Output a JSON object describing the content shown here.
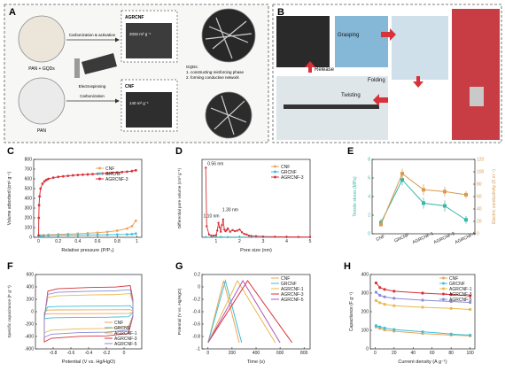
{
  "colors": {
    "cnf": "#f0a35a",
    "grcnf": "#3cc0d8",
    "agrcnf": "#d8313a",
    "agrcnf1": "#e8b84a",
    "agrcnf3": "#b256b8",
    "agrcnf5": "#8a8ad6",
    "tensile": "#37b7a6",
    "conductivity": "#d99a4e",
    "arrow": "#d8313a"
  },
  "panel_a": {
    "letter": "A",
    "precursor_top": "PAN + GQDs",
    "precursor_bottom": "PAN",
    "step_top": "Carbonization & activation",
    "step_middle": "Electrospinning",
    "step_bottom": "Carbonization",
    "sample_top": "AGRCNF",
    "sample_top_area": "2032 m² g⁻¹",
    "sample_bottom": "CNF",
    "sample_bottom_area": "140 m² g⁻¹",
    "notes": [
      "GQDs:",
      "1. constructing reinforcing phase",
      "2. forming conductive network"
    ]
  },
  "panel_b": {
    "letter": "B",
    "labels": [
      "Grasping",
      "Folding",
      "Twisting",
      "Release"
    ]
  },
  "panel_c": {
    "letter": "C",
    "chart_data": {
      "type": "line",
      "xlabel": "Relative pressure (P/P₀)",
      "ylabel": "Volume adsorbed (cm³ g⁻¹)",
      "xlim": [
        -0.05,
        1.05
      ],
      "ylim": [
        0,
        800
      ],
      "xticks": [
        0.0,
        0.2,
        0.4,
        0.6,
        0.8,
        1.0
      ],
      "yticks": [
        0,
        100,
        200,
        300,
        400,
        500,
        600,
        700,
        800
      ],
      "legend": "top-right",
      "series": [
        {
          "name": "CNF",
          "color_key": "cnf",
          "x": [
            0.0,
            0.005,
            0.02,
            0.05,
            0.1,
            0.2,
            0.3,
            0.4,
            0.5,
            0.6,
            0.7,
            0.8,
            0.9,
            0.95,
            0.99
          ],
          "y": [
            5,
            12,
            18,
            22,
            26,
            30,
            34,
            38,
            42,
            48,
            56,
            68,
            90,
            115,
            170
          ]
        },
        {
          "name": "GRCNF",
          "color_key": "grcnf",
          "x": [
            0.0,
            0.005,
            0.02,
            0.05,
            0.1,
            0.2,
            0.3,
            0.4,
            0.5,
            0.6,
            0.7,
            0.8,
            0.9,
            0.95,
            0.99
          ],
          "y": [
            4,
            10,
            14,
            17,
            19,
            21,
            22,
            23,
            24,
            25,
            26,
            28,
            30,
            33,
            38
          ]
        },
        {
          "name": "AGRCNF-3",
          "color_key": "agrcnf",
          "x": [
            0.0,
            0.002,
            0.005,
            0.01,
            0.02,
            0.04,
            0.06,
            0.08,
            0.1,
            0.15,
            0.2,
            0.25,
            0.3,
            0.35,
            0.4,
            0.45,
            0.5,
            0.55,
            0.6,
            0.65,
            0.7,
            0.75,
            0.8,
            0.85,
            0.9,
            0.95,
            0.99
          ],
          "y": [
            20,
            200,
            330,
            420,
            500,
            550,
            575,
            590,
            600,
            612,
            620,
            626,
            631,
            636,
            640,
            643,
            646,
            649,
            652,
            655,
            658,
            662,
            666,
            670,
            674,
            680,
            688
          ]
        }
      ]
    }
  },
  "panel_d": {
    "letter": "D",
    "chart_data": {
      "type": "line",
      "xlabel": "Pore size (nm)",
      "ylabel": "Differential pore volume (cm³ g⁻¹)",
      "xlim": [
        0.4,
        5
      ],
      "ylim": [
        0,
        14
      ],
      "xticks": [
        1,
        2,
        3,
        4,
        5
      ],
      "legend": "top-right",
      "annotations": [
        {
          "text": "0.56 nm",
          "x": 0.56,
          "y": 12.5
        },
        {
          "text": "1.10 nm",
          "x": 1.1,
          "y": 3.1
        },
        {
          "text": "1.30 nm",
          "x": 1.3,
          "y": 4.2
        }
      ],
      "series": [
        {
          "name": "CNF",
          "color_key": "cnf",
          "x": [
            0.56,
            0.8,
            1.0,
            1.2,
            1.5,
            2.0,
            2.5,
            3.0,
            4.0,
            5.0
          ],
          "y": [
            0.05,
            0.05,
            0.06,
            0.06,
            0.05,
            0.05,
            0.04,
            0.04,
            0.03,
            0.03
          ]
        },
        {
          "name": "GRCNF",
          "color_key": "grcnf",
          "x": [
            0.56,
            0.8,
            1.0,
            1.2,
            1.5,
            2.0,
            2.5,
            3.0,
            4.0,
            5.0
          ],
          "y": [
            0.03,
            0.03,
            0.04,
            0.04,
            0.03,
            0.03,
            0.03,
            0.02,
            0.02,
            0.02
          ]
        },
        {
          "name": "AGRCNF-3",
          "color_key": "agrcnf",
          "x": [
            0.56,
            0.6,
            0.7,
            0.8,
            0.9,
            1.0,
            1.05,
            1.1,
            1.15,
            1.2,
            1.25,
            1.3,
            1.35,
            1.4,
            1.45,
            1.5,
            1.6,
            1.7,
            1.8,
            1.9,
            2.0,
            2.1,
            2.2,
            2.3,
            2.4,
            2.5,
            2.7,
            3.0,
            3.5,
            4.0,
            4.5,
            5.0
          ],
          "y": [
            12.5,
            2.0,
            0.5,
            0.3,
            0.3,
            0.4,
            1.2,
            2.6,
            1.8,
            1.0,
            2.2,
            3.2,
            1.4,
            1.1,
            1.3,
            1.6,
            1.0,
            1.3,
            1.1,
            1.2,
            1.4,
            0.9,
            0.6,
            0.5,
            0.3,
            0.25,
            0.2,
            0.15,
            0.1,
            0.08,
            0.06,
            0.05
          ]
        }
      ]
    }
  },
  "panel_e": {
    "letter": "E",
    "chart_data": {
      "type": "line",
      "categories": [
        "CNF",
        "GRCNF",
        "AGRCNF-1",
        "AGRCNF-3",
        "AGRCNF-5"
      ],
      "ylabel": "Tensile stress (MPa)",
      "y2label": "Electric conductivity (S m⁻¹)",
      "ylim": [
        0,
        8
      ],
      "y2lim": [
        0,
        120
      ],
      "yticks": [
        0,
        2,
        4,
        6,
        8
      ],
      "y2ticks": [
        0,
        20,
        40,
        60,
        80,
        100,
        120
      ],
      "series": [
        {
          "name": "Tensile stress",
          "axis": "left",
          "color_key": "tensile",
          "values": [
            1.2,
            5.8,
            3.3,
            3.0,
            1.5
          ],
          "errors": [
            0.4,
            0.6,
            0.6,
            0.6,
            0.4
          ]
        },
        {
          "name": "Electric conductivity",
          "axis": "right",
          "color_key": "conductivity",
          "values": [
            15,
            97,
            71,
            68,
            63
          ],
          "errors": [
            3,
            8,
            9,
            8,
            6
          ]
        }
      ]
    }
  },
  "panel_f": {
    "letter": "F",
    "chart_data": {
      "type": "line",
      "xlabel": "Potential (V vs. Hg/HgO)",
      "ylabel": "Specific capacitance (F g⁻¹)",
      "xlim": [
        -1.0,
        0.2
      ],
      "ylim": [
        -600,
        600
      ],
      "xticks": [
        -0.8,
        -0.6,
        -0.4,
        -0.2,
        0.0
      ],
      "yticks": [
        -600,
        -400,
        -200,
        0,
        200,
        400,
        600
      ],
      "legend": "bottom-right",
      "series": [
        {
          "name": "CNF",
          "color_key": "cnf",
          "amplitude": 30
        },
        {
          "name": "GRCNF",
          "color_key": "grcnf",
          "amplitude": 90
        },
        {
          "name": "AGRCNF-1",
          "color_key": "agrcnf1",
          "amplitude": 270
        },
        {
          "name": "AGRCNF-3",
          "color_key": "agrcnf",
          "amplitude": 390
        },
        {
          "name": "AGRCNF-5",
          "color_key": "agrcnf5",
          "amplitude": 330
        }
      ]
    }
  },
  "panel_g": {
    "letter": "G",
    "chart_data": {
      "type": "line",
      "xlabel": "Time (s)",
      "ylabel": "Potential (V vs. Hg/HgO)",
      "xlim": [
        -50,
        850
      ],
      "ylim": [
        -1.0,
        0.2
      ],
      "xticks": [
        0,
        200,
        400,
        600,
        800
      ],
      "yticks": [
        -1.0,
        -0.8,
        -0.6,
        -0.4,
        -0.2,
        0.0,
        0.2
      ],
      "legend": "top-right",
      "series": [
        {
          "name": "CNF",
          "color_key": "cnf",
          "charge_s": 130,
          "total_s": 260
        },
        {
          "name": "GRCNF",
          "color_key": "grcnf",
          "charge_s": 145,
          "total_s": 280
        },
        {
          "name": "AGRCNF-1",
          "color_key": "agrcnf1",
          "charge_s": 245,
          "total_s": 560
        },
        {
          "name": "AGRCNF-3",
          "color_key": "agrcnf",
          "charge_s": 330,
          "total_s": 700
        },
        {
          "name": "AGRCNF-5",
          "color_key": "agrcnf3",
          "charge_s": 290,
          "total_s": 600
        }
      ]
    }
  },
  "panel_h": {
    "letter": "H",
    "chart_data": {
      "type": "line",
      "xlabel": "Current density (A g⁻¹)",
      "ylabel": "Capacitance (F g⁻¹)",
      "xlim": [
        -5,
        105
      ],
      "ylim": [
        0,
        400
      ],
      "xticks": [
        0,
        20,
        40,
        60,
        80,
        100
      ],
      "yticks": [
        0,
        100,
        200,
        300,
        400
      ],
      "legend": "top-right",
      "x": [
        1,
        5,
        10,
        20,
        50,
        80,
        100
      ],
      "series": [
        {
          "name": "CNF",
          "color_key": "cnf",
          "values": [
            118,
            110,
            102,
            95,
            83,
            74,
            70
          ]
        },
        {
          "name": "GRCNF",
          "color_key": "grcnf",
          "values": [
            125,
            118,
            112,
            104,
            92,
            80,
            74
          ]
        },
        {
          "name": "AGRCNF-1",
          "color_key": "agrcnf1",
          "values": [
            260,
            248,
            240,
            232,
            224,
            218,
            212
          ]
        },
        {
          "name": "AGRCNF-3",
          "color_key": "agrcnf",
          "values": [
            355,
            330,
            320,
            310,
            300,
            292,
            285
          ]
        },
        {
          "name": "AGRCNF-5",
          "color_key": "agrcnf5",
          "values": [
            305,
            288,
            280,
            272,
            262,
            255,
            250
          ]
        }
      ]
    }
  }
}
